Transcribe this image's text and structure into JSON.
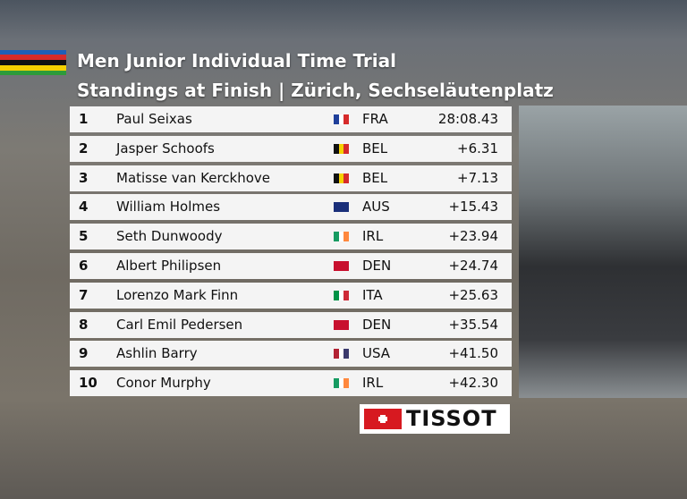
{
  "header": {
    "title": "Men Junior Individual Time Trial",
    "subtitle": "Standings at Finish | Zürich, Sechseläutenplatz"
  },
  "table": {
    "rows": [
      [
        "1",
        "Paul Seixas",
        "FRA",
        "28:08.43"
      ],
      [
        "2",
        "Jasper Schoofs",
        "BEL",
        "+6.31"
      ],
      [
        "3",
        "Matisse van Kerckhove",
        "BEL",
        "+7.13"
      ],
      [
        "4",
        "William Holmes",
        "AUS",
        "+15.43"
      ],
      [
        "5",
        "Seth Dunwoody",
        "IRL",
        "+23.94"
      ],
      [
        "6",
        "Albert Philipsen",
        "DEN",
        "+24.74"
      ],
      [
        "7",
        "Lorenzo Mark Finn",
        "ITA",
        "+25.63"
      ],
      [
        "8",
        "Carl Emil Pedersen",
        "DEN",
        "+35.54"
      ],
      [
        "9",
        "Ashlin Barry",
        "USA",
        "+41.50"
      ],
      [
        "10",
        "Conor Murphy",
        "IRL",
        "+42.30"
      ]
    ]
  },
  "sponsor": "TISSOT"
}
